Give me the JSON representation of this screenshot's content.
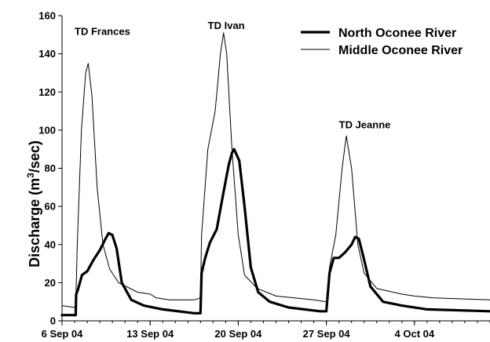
{
  "chart_data": {
    "type": "line",
    "ylabel_main": "Discharge (m",
    "ylabel_sup": "3",
    "ylabel_tail": "/sec)",
    "xlim": [
      "2004-09-06",
      "2004-10-10"
    ],
    "ylim": [
      0,
      160
    ],
    "y_ticks": [
      0,
      20,
      40,
      60,
      80,
      100,
      120,
      140,
      160
    ],
    "x_ticks": [
      {
        "date": "2004-09-06",
        "label": "6 Sep 04"
      },
      {
        "date": "2004-09-13",
        "label": "13 Sep 04"
      },
      {
        "date": "2004-09-20",
        "label": "20 Sep 04"
      },
      {
        "date": "2004-09-27",
        "label": "27 Sep 04"
      },
      {
        "date": "2004-10-04",
        "label": "4 Oct 04"
      }
    ],
    "grid": false,
    "legend_position": "top-right",
    "annotations": [
      {
        "text": "TD Frances",
        "date": "2004-09-07 00:00",
        "y": 152
      },
      {
        "text": "TD Ivan",
        "date": "2004-09-17 14:00",
        "y": 155
      },
      {
        "text": "TD Jeanne",
        "date": "2004-09-28 00:00",
        "y": 103
      }
    ],
    "series": [
      {
        "name": "North Oconee River",
        "color": "#000000",
        "width": 3.2,
        "points": [
          [
            "2004-09-06 00:00",
            3
          ],
          [
            "2004-09-07 02:00",
            3
          ],
          [
            "2004-09-07 03:00",
            14
          ],
          [
            "2004-09-07 06:00",
            16
          ],
          [
            "2004-09-07 10:00",
            20
          ],
          [
            "2004-09-07 14:00",
            24
          ],
          [
            "2004-09-08 00:00",
            26
          ],
          [
            "2004-09-08 12:00",
            32
          ],
          [
            "2004-09-09 00:00",
            37
          ],
          [
            "2004-09-09 09:00",
            42
          ],
          [
            "2004-09-09 17:00",
            46
          ],
          [
            "2004-09-10 00:00",
            45
          ],
          [
            "2004-09-10 08:00",
            38
          ],
          [
            "2004-09-10 18:00",
            20
          ],
          [
            "2004-09-11 12:00",
            11
          ],
          [
            "2004-09-12 12:00",
            8
          ],
          [
            "2004-09-14 00:00",
            6
          ],
          [
            "2004-09-16 12:00",
            4
          ],
          [
            "2004-09-17 00:00",
            4
          ],
          [
            "2004-09-17 02:00",
            25
          ],
          [
            "2004-09-17 09:00",
            33
          ],
          [
            "2004-09-17 18:00",
            41
          ],
          [
            "2004-09-18 07:00",
            48
          ],
          [
            "2004-09-18 19:00",
            66
          ],
          [
            "2004-09-19 06:00",
            82
          ],
          [
            "2004-09-19 12:00",
            88
          ],
          [
            "2004-09-19 16:00",
            90
          ],
          [
            "2004-09-20 02:00",
            84
          ],
          [
            "2004-09-20 12:00",
            60
          ],
          [
            "2004-09-21 00:00",
            28
          ],
          [
            "2004-09-21 14:00",
            15
          ],
          [
            "2004-09-22 12:00",
            10
          ],
          [
            "2004-09-24 00:00",
            7
          ],
          [
            "2004-09-26 12:00",
            5
          ],
          [
            "2004-09-27 00:00",
            5
          ],
          [
            "2004-09-27 06:00",
            25
          ],
          [
            "2004-09-27 14:00",
            33
          ],
          [
            "2004-09-28 00:00",
            33
          ],
          [
            "2004-09-28 12:00",
            36
          ],
          [
            "2004-09-29 00:00",
            40
          ],
          [
            "2004-09-29 07:00",
            44
          ],
          [
            "2004-09-29 14:00",
            43
          ],
          [
            "2004-09-30 00:00",
            32
          ],
          [
            "2004-09-30 12:00",
            18
          ],
          [
            "2004-10-01 12:00",
            10
          ],
          [
            "2004-10-03 00:00",
            8
          ],
          [
            "2004-10-05 00:00",
            6
          ],
          [
            "2004-10-10 00:00",
            5
          ]
        ]
      },
      {
        "name": "Middle Oconee River",
        "color": "#000000",
        "width": 1,
        "points": [
          [
            "2004-09-06 00:00",
            8
          ],
          [
            "2004-09-07 00:00",
            7
          ],
          [
            "2004-09-07 02:00",
            7
          ],
          [
            "2004-09-07 05:00",
            40
          ],
          [
            "2004-09-07 13:00",
            100
          ],
          [
            "2004-09-07 21:00",
            130
          ],
          [
            "2004-09-08 02:00",
            135
          ],
          [
            "2004-09-08 09:00",
            118
          ],
          [
            "2004-09-08 19:00",
            70
          ],
          [
            "2004-09-09 06:00",
            40
          ],
          [
            "2004-09-09 19:00",
            27
          ],
          [
            "2004-09-10 12:00",
            20
          ],
          [
            "2004-09-12 00:00",
            15
          ],
          [
            "2004-09-13 00:00",
            14
          ],
          [
            "2004-09-13 12:00",
            12
          ],
          [
            "2004-09-14 12:00",
            11
          ],
          [
            "2004-09-16 12:00",
            11
          ],
          [
            "2004-09-17 00:00",
            12
          ],
          [
            "2004-09-17 02:00",
            45
          ],
          [
            "2004-09-17 14:00",
            90
          ],
          [
            "2004-09-18 04:00",
            110
          ],
          [
            "2004-09-18 14:00",
            140
          ],
          [
            "2004-09-18 20:00",
            151
          ],
          [
            "2004-09-19 02:00",
            140
          ],
          [
            "2004-09-19 12:00",
            90
          ],
          [
            "2004-09-20 00:00",
            45
          ],
          [
            "2004-09-20 12:00",
            24
          ],
          [
            "2004-09-21 12:00",
            17
          ],
          [
            "2004-09-23 00:00",
            13
          ],
          [
            "2004-09-26 00:00",
            11
          ],
          [
            "2004-09-27 00:00",
            10
          ],
          [
            "2004-09-27 06:00",
            28
          ],
          [
            "2004-09-27 18:00",
            45
          ],
          [
            "2004-09-28 06:00",
            80
          ],
          [
            "2004-09-28 14:00",
            97
          ],
          [
            "2004-09-29 00:00",
            80
          ],
          [
            "2004-09-29 12:00",
            40
          ],
          [
            "2004-09-30 00:00",
            25
          ],
          [
            "2004-10-01 00:00",
            17
          ],
          [
            "2004-10-03 00:00",
            14
          ],
          [
            "2004-10-04 00:00",
            13
          ],
          [
            "2004-10-05 12:00",
            12
          ],
          [
            "2004-10-10 00:00",
            11
          ]
        ]
      }
    ]
  }
}
